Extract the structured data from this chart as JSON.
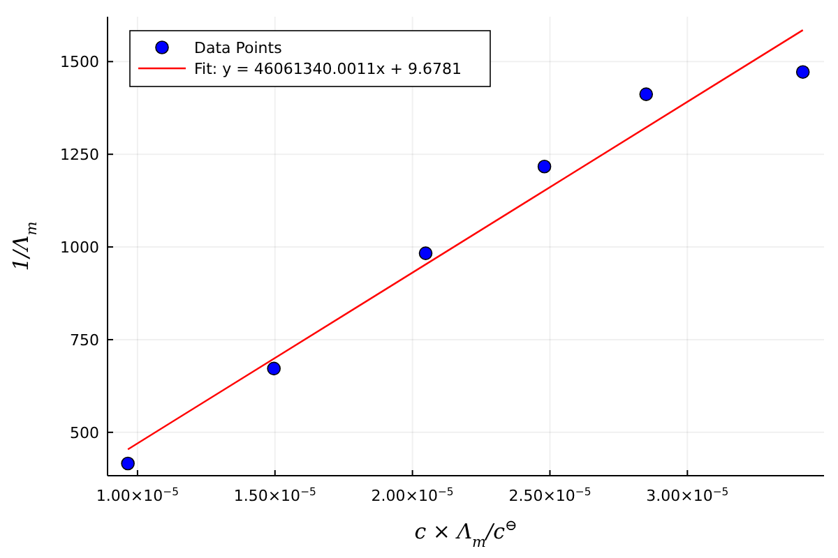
{
  "chart_data": {
    "type": "scatter",
    "xlabel": "c × Λ$_{m}$/c$^{⊖}$",
    "ylabel": "1/Λ$_{m}$",
    "xlim": [
      8.91e-06,
      3.497e-05
    ],
    "ylim": [
      383,
      1621
    ],
    "xticks": [
      {
        "value": 1e-05,
        "label": "1.00×10$^{−5}$"
      },
      {
        "value": 1.5e-05,
        "label": "1.50×10$^{−5}$"
      },
      {
        "value": 2e-05,
        "label": "2.00×10$^{−5}$"
      },
      {
        "value": 2.5e-05,
        "label": "2.50×10$^{−5}$"
      },
      {
        "value": 3e-05,
        "label": "3.00×10$^{−5}$"
      }
    ],
    "yticks": [
      500,
      750,
      1000,
      1250,
      1500
    ],
    "grid": true,
    "legend": "top left",
    "series": [
      {
        "name": "Data Points",
        "marker": "circle",
        "color": "#0000ff",
        "x": [
          9.65e-06,
          1.496e-05,
          2.048e-05,
          2.48e-05,
          2.85e-05,
          3.42e-05
        ],
        "values": [
          416,
          672,
          983,
          1217,
          1412,
          1472
        ]
      },
      {
        "name": "Fit: y = 46061340.0011x + 9.6781",
        "type": "line",
        "line_style": "solid",
        "color": "#ff0000",
        "x": [
          9.65e-06,
          3.42e-05
        ],
        "values": [
          454,
          1585
        ]
      }
    ]
  }
}
